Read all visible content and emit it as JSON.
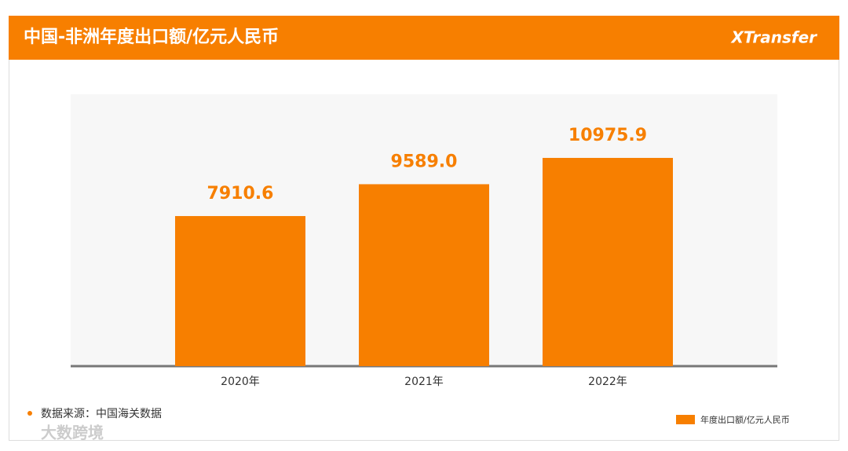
{
  "chart_data": {
    "type": "bar",
    "title": "中国-非洲年度出口额/亿元人民币",
    "brand": "XTransfer",
    "categories": [
      "2020年",
      "2021年",
      "2022年"
    ],
    "series": [
      {
        "name": "年度出口额/亿元人民币",
        "color": "#f77f00",
        "values": [
          7910.6,
          9589.0,
          10975.9
        ],
        "value_labels": [
          "7910.6",
          "9589.0",
          "10975.9"
        ]
      }
    ],
    "source": "数据来源：中国海关数据",
    "watermark": "大数跨境"
  }
}
